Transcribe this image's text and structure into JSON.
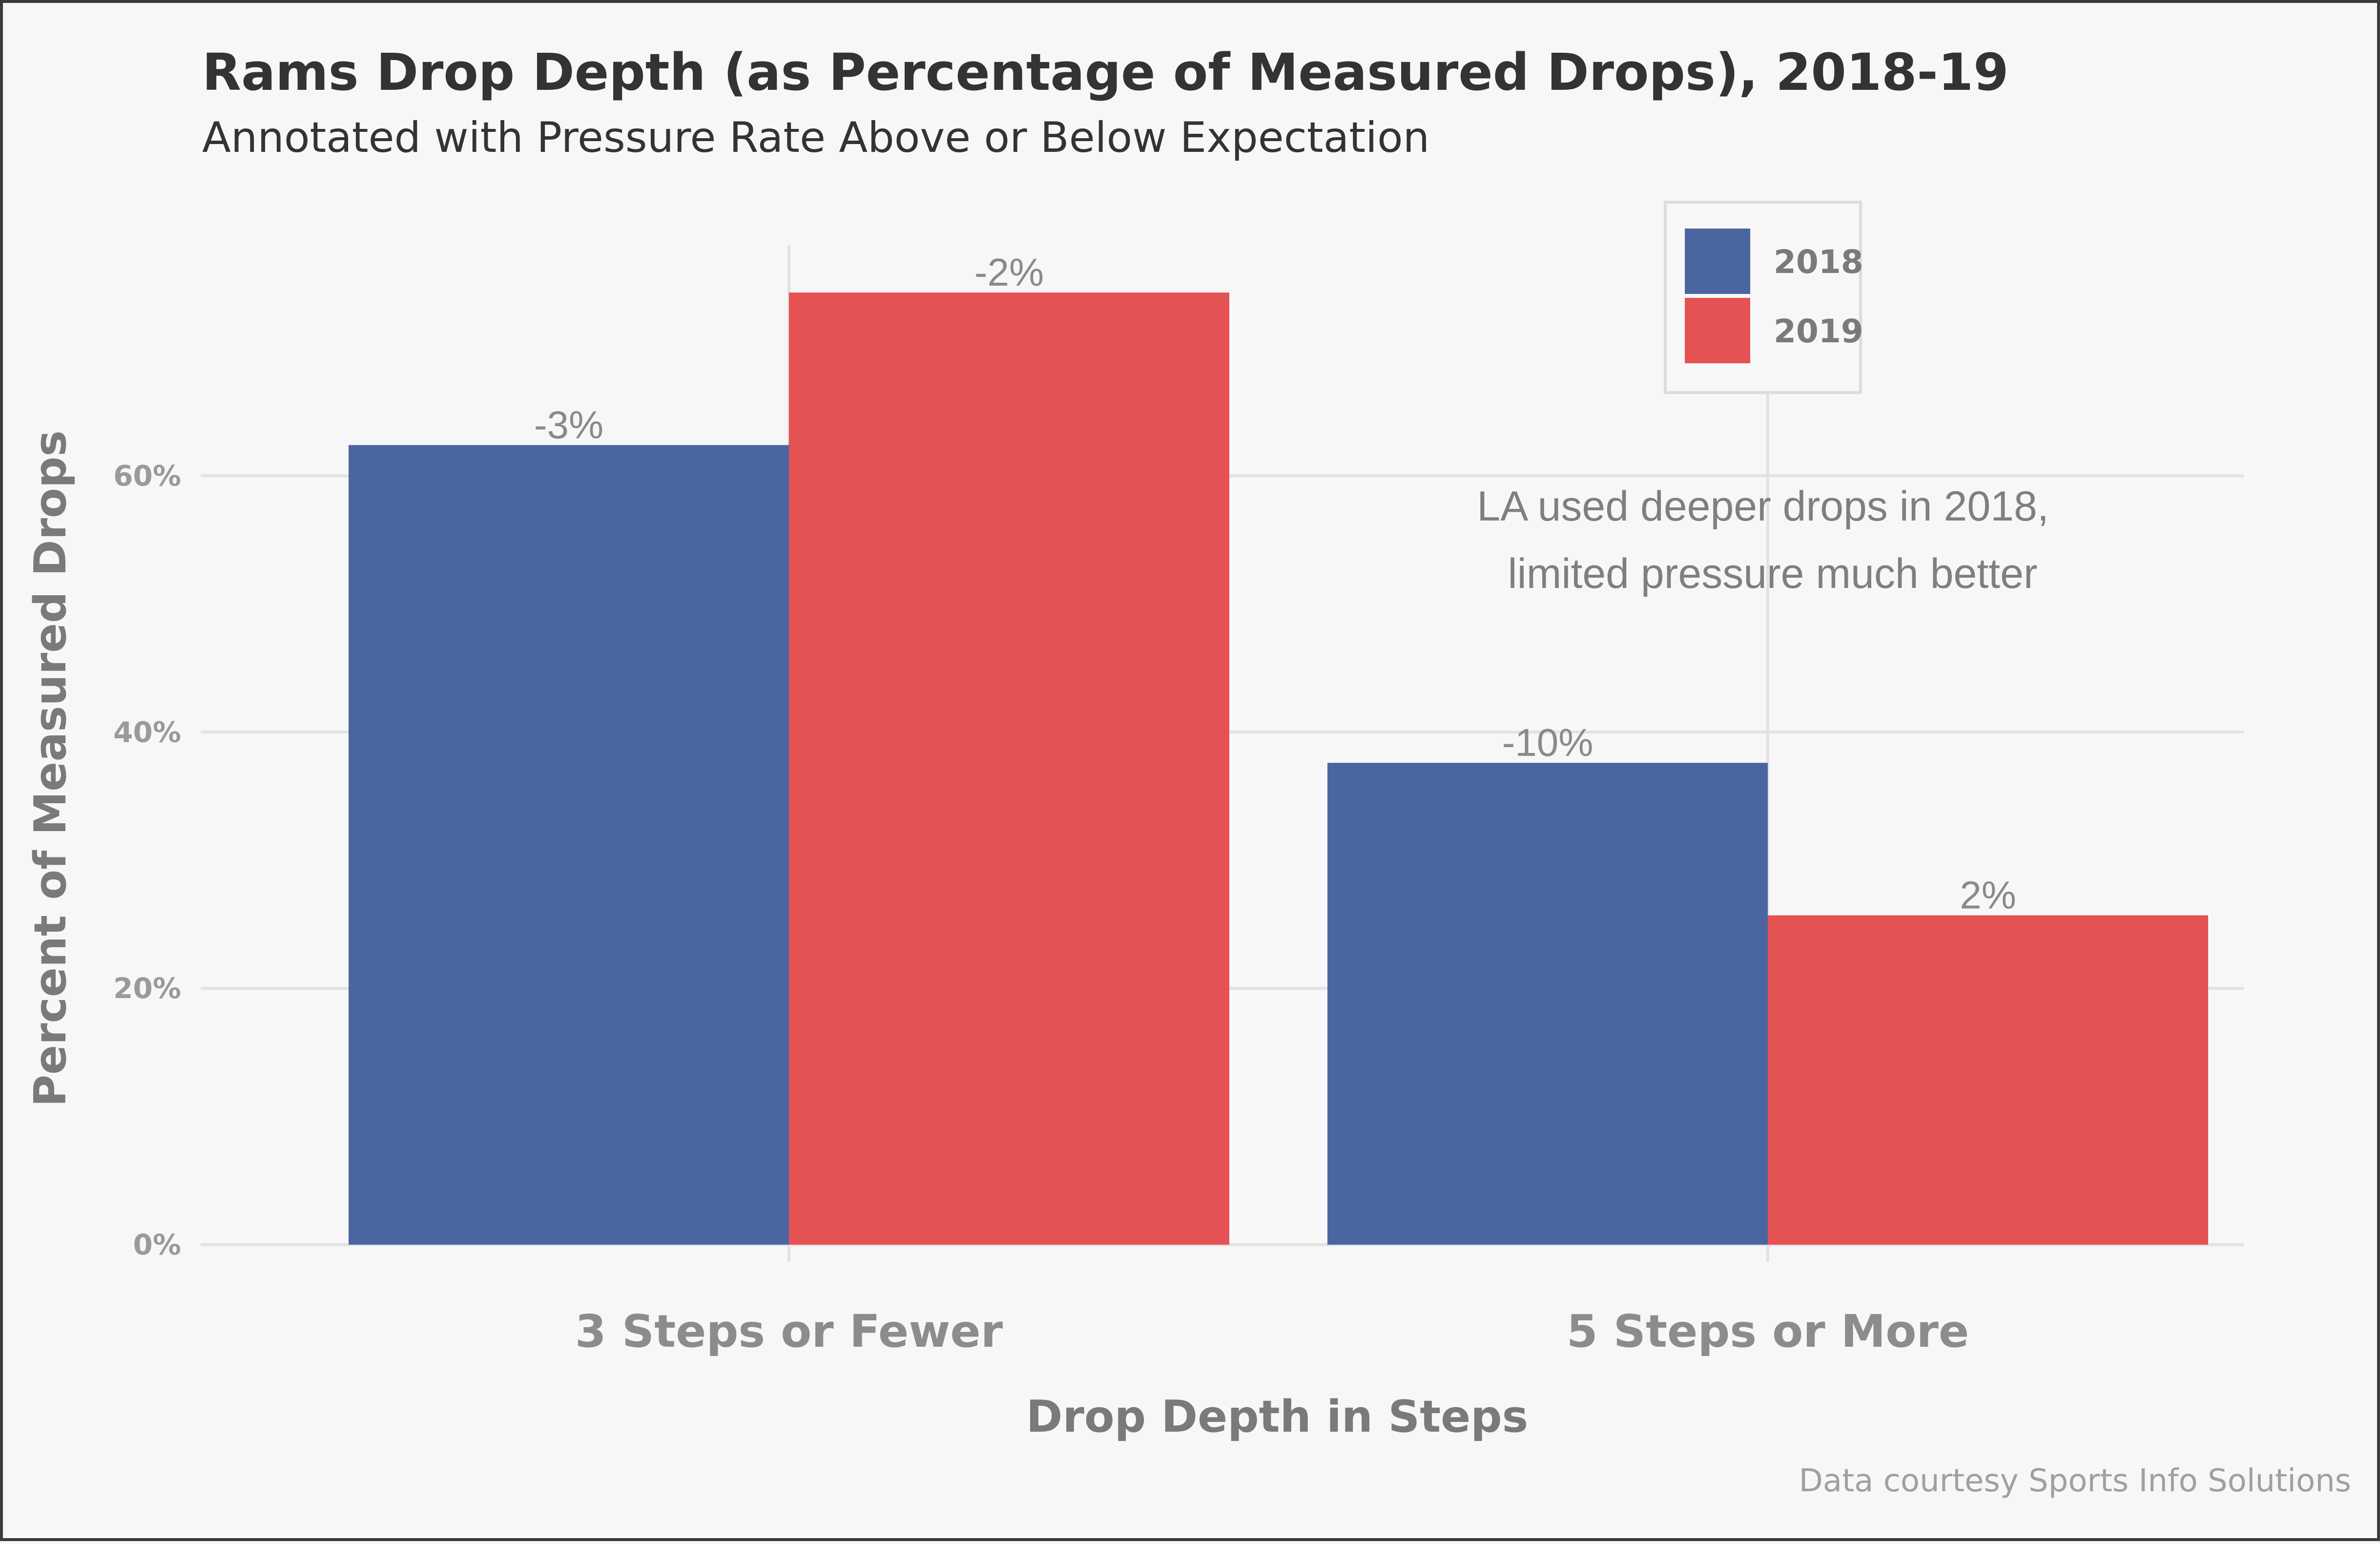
{
  "chart_data": {
    "type": "bar",
    "title": "Rams Drop Depth (as Percentage of Measured Drops), 2018-19",
    "subtitle": "Annotated with Pressure Rate Above or Below Expectation",
    "xlabel": "Drop Depth in Steps",
    "ylabel": "Percent of Measured Drops",
    "categories": [
      "3 Steps or Fewer",
      "5 Steps or More"
    ],
    "series": [
      {
        "name": "2018",
        "color": "#4a66a0",
        "values": [
          62.4,
          37.6
        ],
        "labels": [
          "-3%",
          "-10%"
        ]
      },
      {
        "name": "2019",
        "color": "#e55254",
        "values": [
          74.3,
          25.7
        ],
        "labels": [
          "-2%",
          "2%"
        ]
      }
    ],
    "ylim": [
      0,
      78
    ],
    "yticks": [
      0,
      20,
      40,
      60
    ],
    "ytick_labels": [
      "0%",
      "20%",
      "40%",
      "60%"
    ],
    "grid": true,
    "legend": "top-right",
    "annotation": [
      "LA used deeper drops in 2018,",
      "limited pressure much better"
    ],
    "caption": "Data courtesy Sports Info Solutions"
  }
}
